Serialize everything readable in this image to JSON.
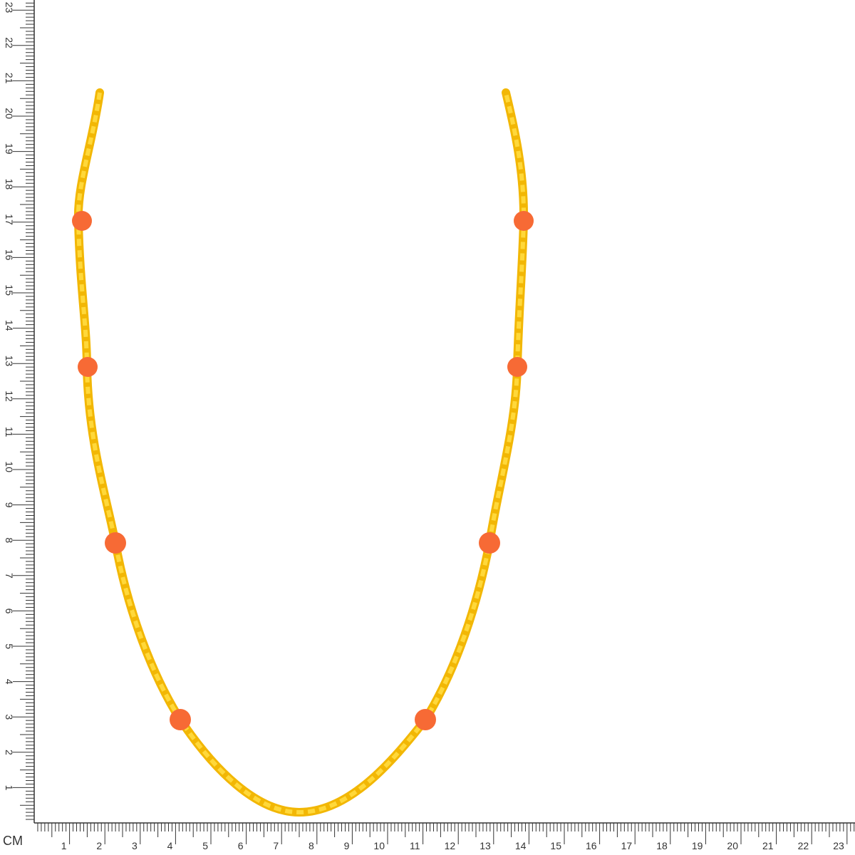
{
  "ruler": {
    "unit": "CM",
    "horizontal_labels": [
      1,
      2,
      3,
      4,
      5,
      6,
      7,
      8,
      9,
      10,
      11,
      12,
      13,
      14,
      15,
      16,
      17,
      18,
      19,
      20,
      21,
      22,
      23
    ],
    "vertical_labels": [
      1,
      2,
      3,
      4,
      5,
      6,
      7,
      8,
      9,
      10,
      11,
      12,
      13,
      14,
      15,
      16,
      17,
      18,
      19,
      20,
      21,
      22,
      23
    ]
  }
}
